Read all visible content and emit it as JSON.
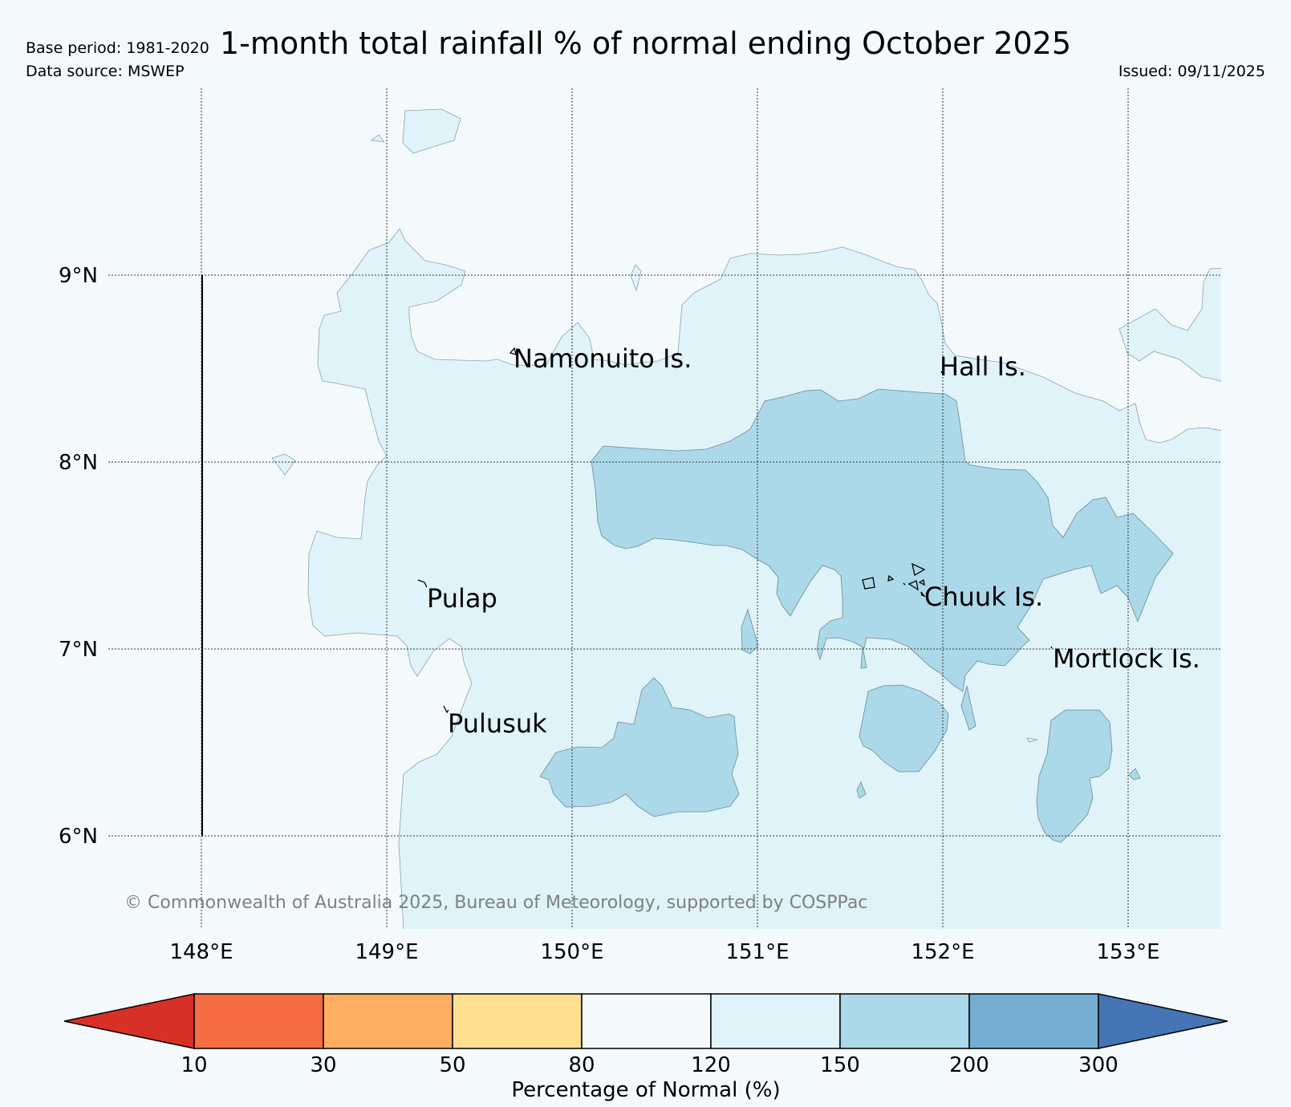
{
  "header": {
    "title": "1-month total rainfall % of normal ending October 2025",
    "base_period": "Base period: 1981-2020",
    "data_source": "Data source: MSWEP",
    "issued": "Issued: 09/11/2025"
  },
  "map": {
    "lat_labels": [
      "9°N",
      "8°N",
      "7°N",
      "6°N"
    ],
    "lon_labels": [
      "148°E",
      "149°E",
      "150°E",
      "151°E",
      "152°E",
      "153°E"
    ],
    "places": [
      {
        "name": "Namonuito Is."
      },
      {
        "name": "Hall Is."
      },
      {
        "name": "Pulap"
      },
      {
        "name": "Chuuk Is."
      },
      {
        "name": "Mortlock Is."
      },
      {
        "name": "Pulusuk"
      }
    ],
    "copyright": "© Commonwealth of Australia 2025, Bureau of Meteorology, supported by COSPPac"
  },
  "legend": {
    "title": "Percentage of Normal (%)",
    "ticks": [
      "10",
      "30",
      "50",
      "80",
      "120",
      "150",
      "200",
      "300"
    ],
    "colors": [
      "#d73027",
      "#f46d43",
      "#fdae61",
      "#fee090",
      "#f4f9fc",
      "#e0f3f8",
      "#abd9e9",
      "#74add1",
      "#4575b4"
    ]
  },
  "colors": {
    "band_120_150": "#e0f3f8",
    "band_150_200": "#abd9e9",
    "background": "#f4f9fc"
  }
}
